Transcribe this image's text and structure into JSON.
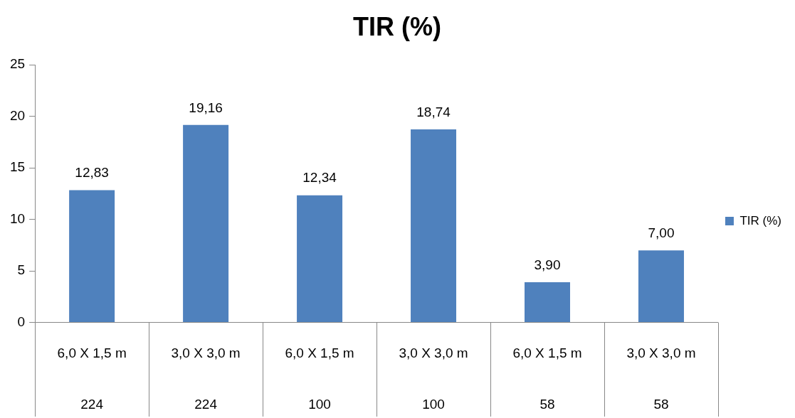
{
  "chart_data": {
    "type": "bar",
    "title": "TIR (%)",
    "categories": [
      "6,0 X 1,5 m\n224",
      "3,0 X 3,0 m\n224",
      "6,0 X 1,5 m\n100",
      "3,0 X 3,0 m\n100",
      "6,0 X 1,5 m\n58",
      "3,0 X 3,0 m\n58"
    ],
    "series": [
      {
        "name": "TIR (%)",
        "color": "#4f81bd",
        "values": [
          12.83,
          19.16,
          12.34,
          18.74,
          3.9,
          7.0
        ],
        "value_labels": [
          "12,83",
          "19,16",
          "12,34",
          "18,74",
          "3,90",
          "7,00"
        ]
      }
    ],
    "ylim": [
      0,
      25
    ],
    "yticks": [
      0,
      5,
      10,
      15,
      20,
      25
    ],
    "grid": false,
    "legend": "right"
  }
}
